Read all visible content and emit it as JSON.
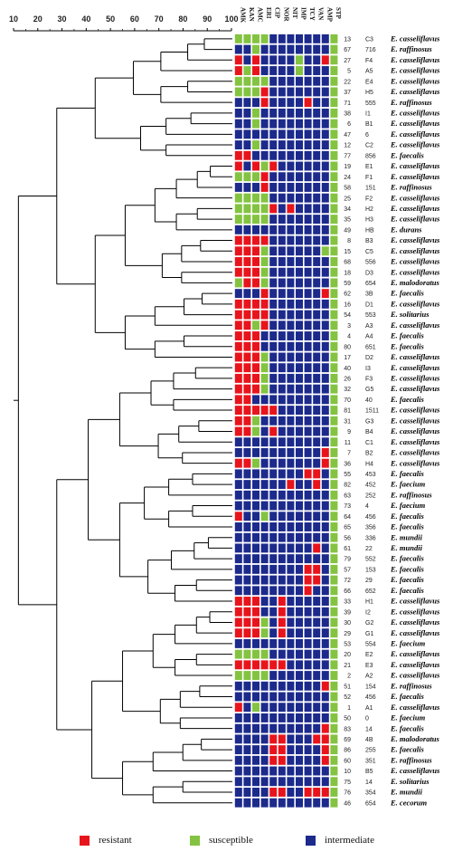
{
  "scale": {
    "ticks": [
      "10",
      "20",
      "30",
      "40",
      "50",
      "60",
      "70",
      "80",
      "90",
      "100"
    ]
  },
  "antibiotics": [
    "AMK",
    "KAN",
    "AMC",
    "ERI",
    "CIP",
    "NOR",
    "NIT",
    "IMP",
    "TCY",
    "VAN",
    "AMP",
    "STP"
  ],
  "colors": {
    "resistant": "#e8141c",
    "susceptible": "#84c341",
    "intermediate": "#1c2a8c"
  },
  "legend": [
    {
      "key": "R",
      "label": "resistant"
    },
    {
      "key": "S",
      "label": "susceptible"
    },
    {
      "key": "I",
      "label": "intermediate"
    }
  ],
  "isolates": [
    {
      "num": "13",
      "code": "C3",
      "species": "E. casseliflavus",
      "profile": "SSSSIIIIIIIS"
    },
    {
      "num": "67",
      "code": "716",
      "species": "E. raffinosus",
      "profile": "IISIIIIIIIIS"
    },
    {
      "num": "27",
      "code": "F4",
      "species": "E. casseliflavus",
      "profile": "RIRIIIISIIRS"
    },
    {
      "num": "5",
      "code": "A5",
      "species": "E. casseliflavus",
      "profile": "RSRIIIISIIIS"
    },
    {
      "num": "22",
      "code": "E4",
      "species": "E. casseliflavus",
      "profile": "SSSSIIIIIIIS"
    },
    {
      "num": "37",
      "code": "H5",
      "species": "E. casseliflavus",
      "profile": "SSSRIIIIIIIS"
    },
    {
      "num": "71",
      "code": "555",
      "species": "E. raffinosus",
      "profile": "IIIRIIIIRIIS"
    },
    {
      "num": "38",
      "code": "I1",
      "species": "E. casseliflavus",
      "profile": "IISIIIIIIIIS"
    },
    {
      "num": "6",
      "code": "B1",
      "species": "E. casseliflavus",
      "profile": "IISIIIIIIIIS"
    },
    {
      "num": "47",
      "code": "6",
      "species": "E. casseliflavus",
      "profile": "IIIIIIIIIIIS"
    },
    {
      "num": "12",
      "code": "C2",
      "species": "E. casseliflavus",
      "profile": "IISIIIIIIIIS"
    },
    {
      "num": "77",
      "code": "856",
      "species": "E. faecalis",
      "profile": "RRIIIIIIIIIS"
    },
    {
      "num": "19",
      "code": "E1",
      "species": "E. casseliflavus",
      "profile": "RIRSRIIIIIIS"
    },
    {
      "num": "24",
      "code": "F1",
      "species": "E. casseliflavus",
      "profile": "SSSRIIIIIIIS"
    },
    {
      "num": "58",
      "code": "151",
      "species": "E. raffinosus",
      "profile": "IIIRIIIIIIIS"
    },
    {
      "num": "25",
      "code": "F2",
      "species": "E. casseliflavus",
      "profile": "SSSSIIIIIIIS"
    },
    {
      "num": "34",
      "code": "H2",
      "species": "E. casseliflavus",
      "profile": "SSSSRIRIIIIS"
    },
    {
      "num": "35",
      "code": "H3",
      "species": "E. casseliflavus",
      "profile": "SSSSIIIIIIIS"
    },
    {
      "num": "49",
      "code": "HB",
      "species": "E. durans",
      "profile": "IIIIIIIIIIIS"
    },
    {
      "num": "8",
      "code": "B3",
      "species": "E. casseliflavus",
      "profile": "RRRRIIIIIIIS"
    },
    {
      "num": "15",
      "code": "C5",
      "species": "E. casseliflavus",
      "profile": "RRRSIIIIIISS"
    },
    {
      "num": "68",
      "code": "556",
      "species": "E. casseliflavus",
      "profile": "RRRSIIIIIIIS"
    },
    {
      "num": "18",
      "code": "D3",
      "species": "E. casseliflavus",
      "profile": "RRRSIIIIIIIS"
    },
    {
      "num": "59",
      "code": "654",
      "species": "E. malodoratus",
      "profile": "SRRSIIIIIIIS"
    },
    {
      "num": "62",
      "code": "3B",
      "species": "E. faecalis",
      "profile": "IIIRIIIIIIRS"
    },
    {
      "num": "16",
      "code": "D1",
      "species": "E. casseliflavus",
      "profile": "RRRRIIIIIIIS"
    },
    {
      "num": "54",
      "code": "553",
      "species": "E. solitarius",
      "profile": "RRRRIIIIIIIS"
    },
    {
      "num": "3",
      "code": "A3",
      "species": "E. casseliflavus",
      "profile": "RRSRIIIIIIIS"
    },
    {
      "num": "4",
      "code": "A4",
      "species": "E. faecalis",
      "profile": "RRRIIIIIIIIS"
    },
    {
      "num": "80",
      "code": "651",
      "species": "E. faecalis",
      "profile": "RRRIIIIIIIIS"
    },
    {
      "num": "17",
      "code": "D2",
      "species": "E. casseliflavus",
      "profile": "RRRSIIIIIIIS"
    },
    {
      "num": "40",
      "code": "I3",
      "species": "E. casseliflavus",
      "profile": "RRRSIIIIIIIS"
    },
    {
      "num": "26",
      "code": "F3",
      "species": "E. casseliflavus",
      "profile": "RRRSIIIIIIIS"
    },
    {
      "num": "32",
      "code": "G5",
      "species": "E. casseliflavus",
      "profile": "RRRSIIIIIIIS"
    },
    {
      "num": "70",
      "code": "40",
      "species": "E. faecalis",
      "profile": "RRIIIIIIIIIS"
    },
    {
      "num": "81",
      "code": "1511",
      "species": "E. casseliflavus",
      "profile": "RRRRRIIIIIIS"
    },
    {
      "num": "31",
      "code": "G3",
      "species": "E. casseliflavus",
      "profile": "RRSIIIIIIIIS"
    },
    {
      "num": "9",
      "code": "B4",
      "species": "E. casseliflavus",
      "profile": "RRSIRIIIIIIS"
    },
    {
      "num": "11",
      "code": "C1",
      "species": "E. casseliflavus",
      "profile": "IIIIIIIIIIIS"
    },
    {
      "num": "7",
      "code": "B2",
      "species": "E. casseliflavus",
      "profile": "IIIIIIIIIIRS"
    },
    {
      "num": "36",
      "code": "H4",
      "species": "E. casseliflavus",
      "profile": "RRSIIIIIIIRS"
    },
    {
      "num": "55",
      "code": "453",
      "species": "E. faecalis",
      "profile": "IIIIIIIIRRIS"
    },
    {
      "num": "82",
      "code": "452",
      "species": "E. faecium",
      "profile": "IIIIIIRIIRIS"
    },
    {
      "num": "63",
      "code": "252",
      "species": "E. raffinosus",
      "profile": "IIIIIIIIIIIS"
    },
    {
      "num": "73",
      "code": "4",
      "species": "E. faecium",
      "profile": "IIIIIIIIIIIS"
    },
    {
      "num": "64",
      "code": "456",
      "species": "E. faecalis",
      "profile": "RIISIIIIIIIS"
    },
    {
      "num": "65",
      "code": "356",
      "species": "E. faecalis",
      "profile": "IIIIIIIIIIIS"
    },
    {
      "num": "56",
      "code": "336",
      "species": "E. mundii",
      "profile": "IIIIIIIIIIIS"
    },
    {
      "num": "61",
      "code": "22",
      "species": "E. mundii",
      "profile": "IIIIIIIIIRIS"
    },
    {
      "num": "79",
      "code": "552",
      "species": "E. faecalis",
      "profile": "IIIIIIIIIIIS"
    },
    {
      "num": "57",
      "code": "153",
      "species": "E. faecalis",
      "profile": "IIIIIIIIRRIS"
    },
    {
      "num": "72",
      "code": "29",
      "species": "E. faecalis",
      "profile": "IIIIIIIIRRIS"
    },
    {
      "num": "66",
      "code": "652",
      "species": "E. faecalis",
      "profile": "IIIIIIIIRIIS"
    },
    {
      "num": "33",
      "code": "H1",
      "species": "E. casseliflavus",
      "profile": "RRRIIRIIIIIS"
    },
    {
      "num": "39",
      "code": "I2",
      "species": "E. casseliflavus",
      "profile": "RRRIIRIIIIIS"
    },
    {
      "num": "30",
      "code": "G2",
      "species": "E. casseliflavus",
      "profile": "RRRSIRIIIIIS"
    },
    {
      "num": "29",
      "code": "G1",
      "species": "E. casseliflavus",
      "profile": "RRRSIRIIIIIS"
    },
    {
      "num": "53",
      "code": "554",
      "species": "E. faecium",
      "profile": "IIIIIIIIIIIS"
    },
    {
      "num": "20",
      "code": "E2",
      "species": "E. casseliflavus",
      "profile": "SSSSIIIIIIIS"
    },
    {
      "num": "21",
      "code": "E3",
      "species": "E. casseliflavus",
      "profile": "RRRRRRIIIIIS"
    },
    {
      "num": "2",
      "code": "A2",
      "species": "E. casseliflavus",
      "profile": "SSSSIIIIIIIS"
    },
    {
      "num": "51",
      "code": "154",
      "species": "E. raffinosus",
      "profile": "IIIIIIIIIIRS"
    },
    {
      "num": "52",
      "code": "456",
      "species": "E. faecalis",
      "profile": "IIIIIIIIIIIS"
    },
    {
      "num": "1",
      "code": "A1",
      "species": "E. casseliflavus",
      "profile": "RISIIIIIIIIS"
    },
    {
      "num": "50",
      "code": "0",
      "species": "E. faecium",
      "profile": "IIIIIIIIIIIS"
    },
    {
      "num": "83",
      "code": "14",
      "species": "E. faecalis",
      "profile": "IIIIIIIIIIRS"
    },
    {
      "num": "69",
      "code": "4B",
      "species": "E. malodoratus",
      "profile": "IIIIRRIIIRRS"
    },
    {
      "num": "86",
      "code": "255",
      "species": "E. faecalis",
      "profile": "IIIIRRIIIIRS"
    },
    {
      "num": "60",
      "code": "351",
      "species": "E. raffinosus",
      "profile": "IIIIRRIIIIRS"
    },
    {
      "num": "10",
      "code": "B5",
      "species": "E. casseliflavus",
      "profile": "IIIIIIIIIIIS"
    },
    {
      "num": "75",
      "code": "14",
      "species": "E. solitarius",
      "profile": "IIIIIIIIIIIS"
    },
    {
      "num": "76",
      "code": "354",
      "species": "E. mundii",
      "profile": "IIIIRRIIRRRS"
    },
    {
      "num": "46",
      "code": "654",
      "species": "E. cecorum",
      "profile": "IIIIIIIIIIIS"
    }
  ]
}
